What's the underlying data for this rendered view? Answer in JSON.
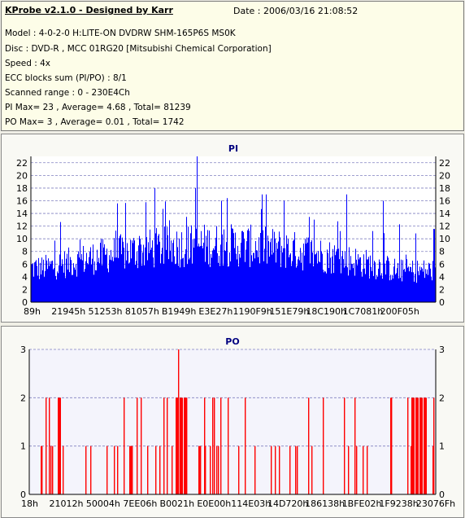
{
  "window": {
    "title": "KProbe v2.1.0 - Designed by Karr",
    "date": "Date : 2006/03/16 21:08:52"
  },
  "info_lines": [
    "Model : 4-0-2-0 H:LITE-ON DVDRW SHM-165P6S MS0K",
    "Disc : DVD-R , MCC 01RG20   [Mitsubishi Chemical Corporation]",
    "Speed : 4x",
    "ECC blocks sum (PI/PO) : 8/1",
    "Scanned range : 0 - 230E4Ch",
    "PI Max= 23 , Average= 4.68 , Total= 81239",
    "PO Max= 3 , Average= 0.01 , Total= 1742"
  ],
  "colors": {
    "pi_bar": "#0000ff",
    "po_bar": "#ff0000",
    "title_text": "#000080",
    "grid": "#8080c0",
    "plot_bg_pi": "#ffffff",
    "plot_bg_po": "#f4f4fc"
  },
  "chart_data": [
    {
      "type": "bar",
      "title": "PI",
      "ylim": [
        0,
        23
      ],
      "yticks": [
        0,
        2,
        4,
        6,
        8,
        10,
        12,
        14,
        16,
        18,
        20,
        22
      ],
      "xtick_labels": [
        "89h",
        "21945h",
        "51253h",
        "81057h",
        "B1949h",
        "E3E27h",
        "1190F9h",
        "151E79h",
        "18C190h",
        "1C7081h",
        "200F05h"
      ],
      "grid": "dashed horizontal",
      "x_range": [
        "0h",
        "230E4Ch"
      ],
      "peaks": [
        {
          "x": "E3E27h",
          "value": 23
        },
        {
          "x": "B1949h",
          "value": 18
        },
        {
          "x": "E3E27h",
          "value": 18
        },
        {
          "x": "1190F9h",
          "value": 17
        },
        {
          "x": "151E79h",
          "value": 17
        },
        {
          "x": "18C190h",
          "value": 17
        }
      ],
      "typical_range": [
        5,
        12
      ],
      "average": 4.68
    },
    {
      "type": "bar",
      "title": "PO",
      "ylim": [
        0,
        3
      ],
      "yticks": [
        0,
        1,
        2,
        3
      ],
      "xtick_labels": [
        "18h",
        "21012h",
        "50004h",
        "7EE06h",
        "B0021h",
        "E0E00h",
        "114E03h",
        "14D720h",
        "186138h",
        "1BFE02h",
        "1F9238h",
        "23076Fh"
      ],
      "grid": "dashed horizontal",
      "x_range": [
        "0h",
        "230E4Ch"
      ],
      "max": 3,
      "average": 0.01
    }
  ]
}
